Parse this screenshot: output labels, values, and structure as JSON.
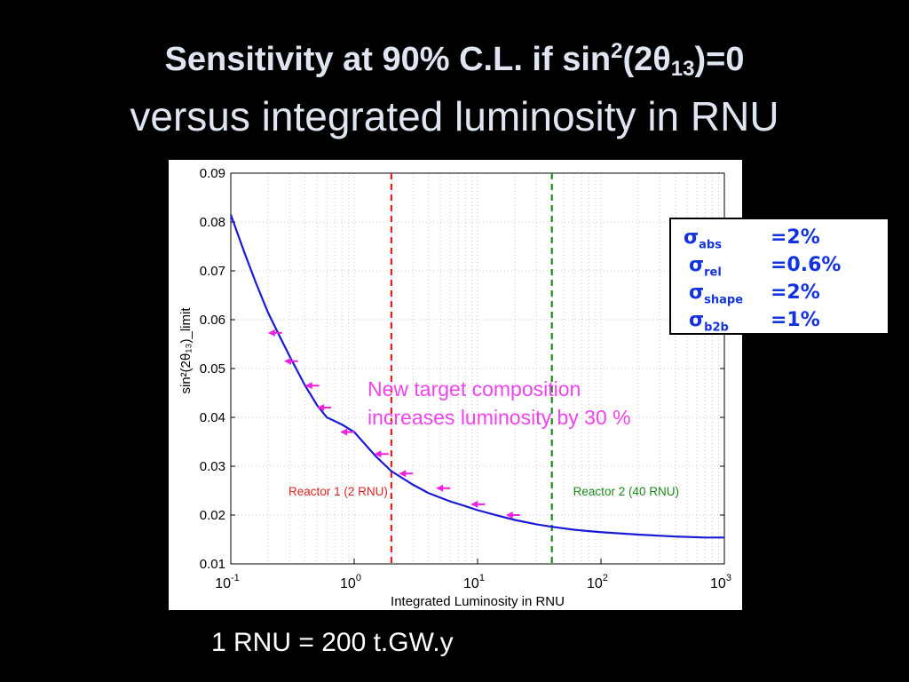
{
  "slide": {
    "title_line1_prefix": "Sensitivity at 90% C.L. if sin",
    "title_line1_sup": "2",
    "title_line1_mid": "(2θ",
    "title_line1_sub": "13",
    "title_line1_suffix": ")=0",
    "title_line2": "versus integrated luminosity in RNU",
    "footnote": "1 RNU = 200 t.GW.y"
  },
  "legend": {
    "rows": [
      {
        "symbol": "σ",
        "subscript": "abs",
        "value": "=2%"
      },
      {
        "symbol": "σ",
        "subscript": "rel",
        "value": "=0.6%"
      },
      {
        "symbol": "σ",
        "subscript": "shape",
        "value": "=2%"
      },
      {
        "symbol": "σ",
        "subscript": "b2b",
        "value": "=1%"
      }
    ]
  },
  "colors": {
    "curve": "#1a1ad6",
    "reactor1": "#e02020",
    "reactor2": "#1a8a1a",
    "arrows": "#ee22dd",
    "annotation": "#ee44ee",
    "legend_text": "#1433e0"
  },
  "chart_data": {
    "type": "line",
    "x_scale": "log",
    "xlim": [
      0.1,
      1000
    ],
    "ylim": [
      0.01,
      0.09
    ],
    "grid": true,
    "xlabel": "Integrated Luminosity in RNU",
    "ylabel": "sin²(2θ₁₃)_limit",
    "x_ticks": [
      {
        "base": "10",
        "exp": "-1",
        "value": 0.1
      },
      {
        "base": "10",
        "exp": "0",
        "value": 1
      },
      {
        "base": "10",
        "exp": "1",
        "value": 10
      },
      {
        "base": "10",
        "exp": "2",
        "value": 100
      },
      {
        "base": "10",
        "exp": "3",
        "value": 1000
      }
    ],
    "y_ticks": [
      "0.01",
      "0.02",
      "0.03",
      "0.04",
      "0.05",
      "0.06",
      "0.07",
      "0.08",
      "0.09"
    ],
    "series": [
      {
        "x": [
          0.1,
          0.13,
          0.16,
          0.2,
          0.25,
          0.3,
          0.4,
          0.5,
          0.6,
          0.8,
          1,
          1.5,
          2,
          3,
          4,
          6,
          8,
          10,
          15,
          20,
          30,
          40,
          60,
          80,
          100,
          200,
          400,
          700,
          1000
        ],
        "y": [
          0.0815,
          0.0735,
          0.0675,
          0.0615,
          0.0565,
          0.0525,
          0.0465,
          0.0425,
          0.04,
          0.0385,
          0.037,
          0.032,
          0.029,
          0.0262,
          0.0245,
          0.0228,
          0.0218,
          0.021,
          0.0198,
          0.019,
          0.0181,
          0.0176,
          0.017,
          0.0167,
          0.0165,
          0.016,
          0.0156,
          0.0154,
          0.0154
        ]
      }
    ],
    "reference_lines": [
      {
        "x": 2,
        "label": "Reactor 1 (2 RNU)",
        "color": "#e02020"
      },
      {
        "x": 40,
        "label": "Reactor 2 (40 RNU)",
        "color": "#1a8a1a"
      }
    ],
    "shift_arrows": [
      {
        "x_from": 0.26,
        "x_to": 0.2,
        "y": 0.0573
      },
      {
        "x_from": 0.35,
        "x_to": 0.27,
        "y": 0.0515
      },
      {
        "x_from": 0.52,
        "x_to": 0.4,
        "y": 0.0465
      },
      {
        "x_from": 0.65,
        "x_to": 0.5,
        "y": 0.042
      },
      {
        "x_from": 1.0,
        "x_to": 0.77,
        "y": 0.037
      },
      {
        "x_from": 1.9,
        "x_to": 1.45,
        "y": 0.0325
      },
      {
        "x_from": 3.0,
        "x_to": 2.3,
        "y": 0.0285
      },
      {
        "x_from": 6.0,
        "x_to": 4.6,
        "y": 0.0255
      },
      {
        "x_from": 11.5,
        "x_to": 8.8,
        "y": 0.0222
      },
      {
        "x_from": 22,
        "x_to": 16.9,
        "y": 0.02
      }
    ],
    "annotation": [
      "New target composition",
      "increases luminosity by 30 %"
    ]
  }
}
